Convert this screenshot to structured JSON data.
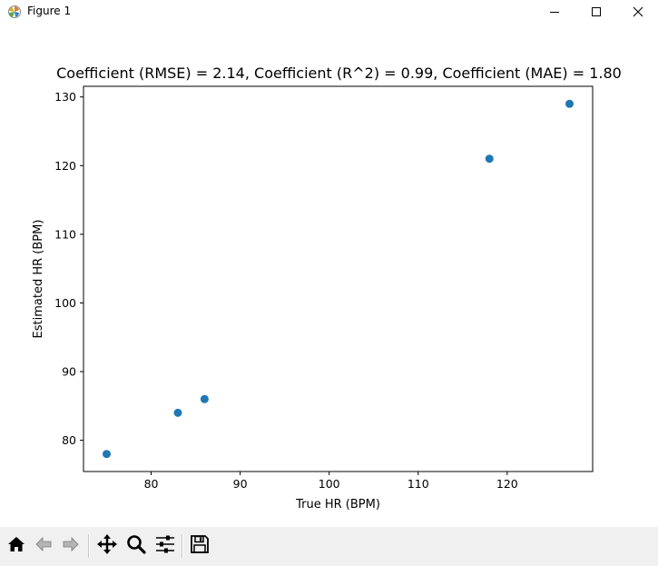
{
  "window": {
    "title": "Figure 1",
    "icons": [
      "matplotlib-icon",
      "minimize-icon",
      "maximize-icon",
      "close-icon"
    ]
  },
  "toolbar": {
    "buttons": [
      "home-icon",
      "back-icon",
      "forward-icon",
      "pan-icon",
      "zoom-icon",
      "configure-subplots-icon",
      "save-icon"
    ]
  },
  "chart_data": {
    "type": "scatter",
    "title": "Coefficient (RMSE) = 2.14, Coefficient (R^2) = 0.99, Coefficient (MAE) = 1.80",
    "xlabel": "True HR (BPM)",
    "ylabel": "Estimated HR (BPM)",
    "xlim": [
      72.4,
      129.6
    ],
    "ylim": [
      75.45,
      131.55
    ],
    "xticks": [
      80,
      90,
      100,
      110,
      120
    ],
    "yticks": [
      80,
      90,
      100,
      110,
      120,
      130
    ],
    "grid": false,
    "color": "#1f77b4",
    "points": [
      {
        "x": 75,
        "y": 78
      },
      {
        "x": 83,
        "y": 84
      },
      {
        "x": 86,
        "y": 86
      },
      {
        "x": 118,
        "y": 121
      },
      {
        "x": 127,
        "y": 129
      }
    ]
  }
}
